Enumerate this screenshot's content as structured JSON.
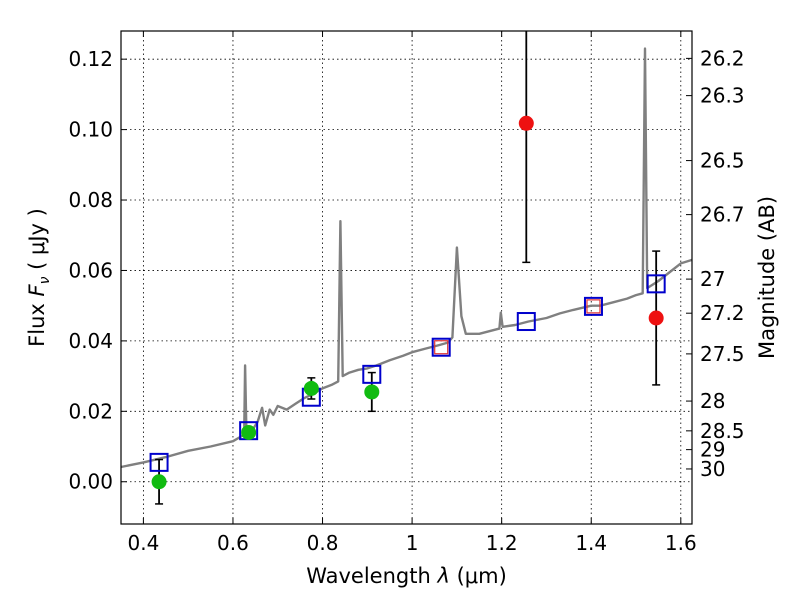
{
  "chart_data": {
    "type": "scatter",
    "xlabel_parts": {
      "text": "Wavelength ",
      "symbol": "λ",
      "unit": " (μm)"
    },
    "ylabel_parts": {
      "text": "Flux ",
      "symbol": "F",
      "subscript": "ν",
      "unit": " ( μJy )"
    },
    "right_ylabel": "Magnitude (AB)",
    "xlim": [
      0.35,
      1.625
    ],
    "ylim": [
      -0.012,
      0.128
    ],
    "grid": true,
    "grid_style": "dotted",
    "x_ticks": [
      {
        "value": 0.4,
        "label": "0.4"
      },
      {
        "value": 0.6,
        "label": "0.6"
      },
      {
        "value": 0.8,
        "label": "0.8"
      },
      {
        "value": 1.0,
        "label": "1"
      },
      {
        "value": 1.2,
        "label": "1.2"
      },
      {
        "value": 1.4,
        "label": "1.4"
      },
      {
        "value": 1.6,
        "label": "1.6"
      }
    ],
    "y_ticks": [
      {
        "value": 0.0,
        "label": "0.00"
      },
      {
        "value": 0.02,
        "label": "0.02"
      },
      {
        "value": 0.04,
        "label": "0.04"
      },
      {
        "value": 0.06,
        "label": "0.06"
      },
      {
        "value": 0.08,
        "label": "0.08"
      },
      {
        "value": 0.1,
        "label": "0.10"
      },
      {
        "value": 0.12,
        "label": "0.12"
      }
    ],
    "right_ticks": [
      {
        "mag": 26.2,
        "label": "26.2"
      },
      {
        "mag": 26.3,
        "label": "26.3"
      },
      {
        "mag": 26.5,
        "label": "26.5"
      },
      {
        "mag": 26.7,
        "label": "26.7"
      },
      {
        "mag": 27.0,
        "label": "27"
      },
      {
        "mag": 27.2,
        "label": "27.2"
      },
      {
        "mag": 27.5,
        "label": "27.5"
      },
      {
        "mag": 28.0,
        "label": "28"
      },
      {
        "mag": 28.5,
        "label": "28.5"
      },
      {
        "mag": 29.0,
        "label": "29"
      },
      {
        "mag": 30.0,
        "label": "30"
      }
    ],
    "model_spectrum": {
      "color": "#808080",
      "points": [
        [
          0.35,
          0.0042
        ],
        [
          0.4,
          0.0055
        ],
        [
          0.45,
          0.007
        ],
        [
          0.5,
          0.0088
        ],
        [
          0.55,
          0.01
        ],
        [
          0.6,
          0.0115
        ],
        [
          0.62,
          0.013
        ],
        [
          0.625,
          0.0138
        ],
        [
          0.627,
          0.033
        ],
        [
          0.63,
          0.014
        ],
        [
          0.645,
          0.015
        ],
        [
          0.655,
          0.017
        ],
        [
          0.665,
          0.021
        ],
        [
          0.672,
          0.016
        ],
        [
          0.682,
          0.0205
        ],
        [
          0.69,
          0.019
        ],
        [
          0.7,
          0.0215
        ],
        [
          0.72,
          0.0205
        ],
        [
          0.74,
          0.0222
        ],
        [
          0.76,
          0.0238
        ],
        [
          0.78,
          0.025
        ],
        [
          0.8,
          0.0265
        ],
        [
          0.82,
          0.0275
        ],
        [
          0.835,
          0.0285
        ],
        [
          0.84,
          0.074
        ],
        [
          0.845,
          0.03
        ],
        [
          0.86,
          0.031
        ],
        [
          0.88,
          0.0318
        ],
        [
          0.9,
          0.0322
        ],
        [
          0.92,
          0.033
        ],
        [
          0.95,
          0.0345
        ],
        [
          0.98,
          0.0358
        ],
        [
          1.0,
          0.0368
        ],
        [
          1.03,
          0.0378
        ],
        [
          1.06,
          0.0388
        ],
        [
          1.08,
          0.0395
        ],
        [
          1.09,
          0.041
        ],
        [
          1.1,
          0.0665
        ],
        [
          1.11,
          0.047
        ],
        [
          1.12,
          0.042
        ],
        [
          1.15,
          0.042
        ],
        [
          1.18,
          0.043
        ],
        [
          1.195,
          0.0435
        ],
        [
          1.198,
          0.048
        ],
        [
          1.202,
          0.044
        ],
        [
          1.23,
          0.0445
        ],
        [
          1.26,
          0.0455
        ],
        [
          1.3,
          0.0465
        ],
        [
          1.33,
          0.0478
        ],
        [
          1.36,
          0.0488
        ],
        [
          1.4,
          0.05
        ],
        [
          1.42,
          0.05
        ],
        [
          1.45,
          0.051
        ],
        [
          1.48,
          0.052
        ],
        [
          1.5,
          0.053
        ],
        [
          1.515,
          0.0535
        ],
        [
          1.52,
          0.123
        ],
        [
          1.525,
          0.055
        ],
        [
          1.55,
          0.057
        ],
        [
          1.58,
          0.06
        ],
        [
          1.6,
          0.062
        ],
        [
          1.625,
          0.063
        ]
      ]
    },
    "series": [
      {
        "type": "markers",
        "marker": "square-open",
        "color": "#0000cc",
        "x": [
          0.435,
          0.635,
          0.775,
          0.91,
          1.065,
          1.255,
          1.405,
          1.545
        ],
        "y": [
          0.0055,
          0.0145,
          0.024,
          0.0305,
          0.0382,
          0.0455,
          0.0498,
          0.0562
        ]
      },
      {
        "type": "markers",
        "marker": "square-open",
        "color": "#dd3333",
        "x": [
          1.065,
          1.405
        ],
        "y": [
          0.0382,
          0.0498
        ]
      },
      {
        "type": "markers",
        "marker": "circle-filled",
        "color": "#11bb11",
        "x": [
          0.435,
          0.635,
          0.775,
          0.91
        ],
        "y": [
          0.0,
          0.014,
          0.0265,
          0.0255
        ],
        "yerr": [
          0.0063,
          0.0,
          0.003,
          0.0055
        ]
      },
      {
        "type": "markers",
        "marker": "circle-filled",
        "color": "#ee1111",
        "x": [
          1.255,
          1.545
        ],
        "y": [
          0.1018,
          0.0465
        ],
        "yerr": [
          0.0395,
          0.019
        ]
      }
    ]
  }
}
